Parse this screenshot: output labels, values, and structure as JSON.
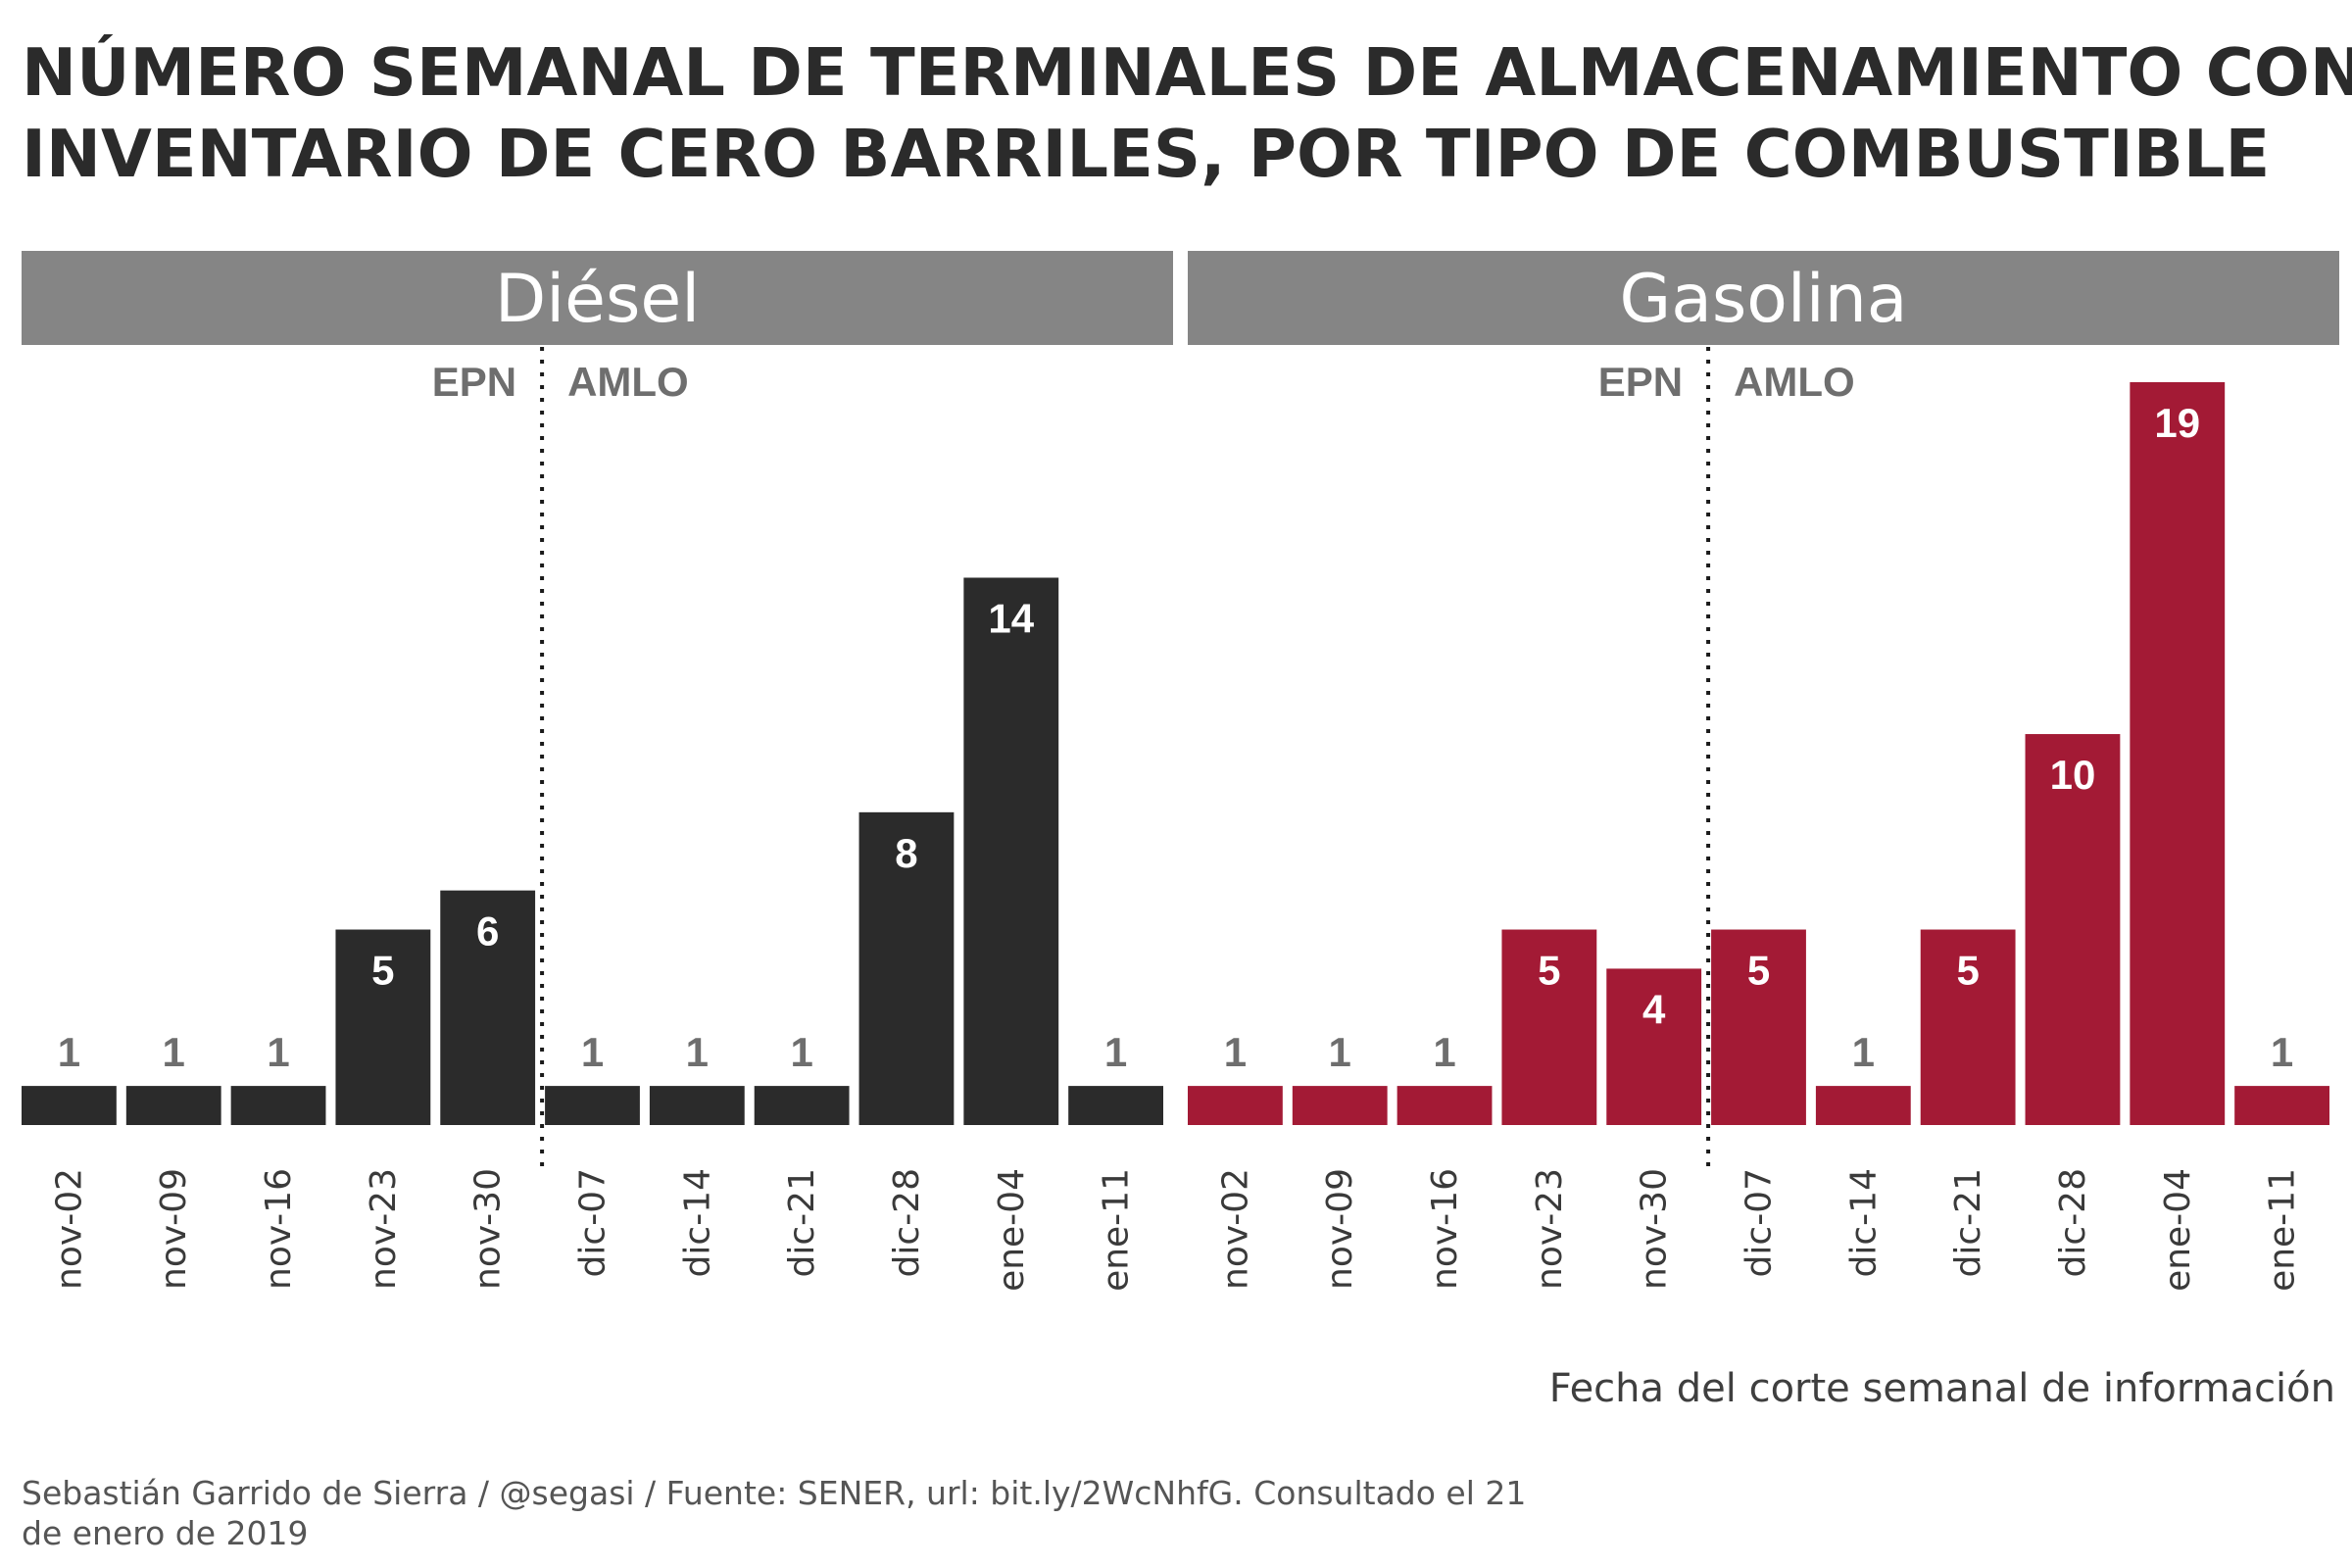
{
  "chart_data": {
    "type": "bar",
    "title_lines": [
      "NÚMERO SEMANAL DE TERMINALES DE ALMACENAMIENTO CON",
      "INVENTARIO DE CERO BARRILES, POR TIPO DE COMBUSTIBLE"
    ],
    "categories": [
      "nov-02",
      "nov-09",
      "nov-16",
      "nov-23",
      "nov-30",
      "dic-07",
      "dic-14",
      "dic-21",
      "dic-28",
      "ene-04",
      "ene-11"
    ],
    "panels": [
      {
        "name": "Diésel",
        "color": "#2b2b2b",
        "values": [
          1,
          1,
          1,
          5,
          6,
          1,
          1,
          1,
          8,
          14,
          1
        ]
      },
      {
        "name": "Gasolina",
        "color": "#a31a35",
        "values": [
          1,
          1,
          1,
          5,
          4,
          5,
          1,
          5,
          10,
          19,
          1
        ]
      }
    ],
    "eras": {
      "before": "EPN",
      "after": "AMLO",
      "divider_between": [
        "nov-30",
        "dic-07"
      ]
    },
    "xlabel": "Fecha del corte semanal de información",
    "ylabel": "",
    "ylim": [
      0,
      19
    ]
  },
  "caption_lines": [
    "Sebastián Garrido de Sierra / @segasi / Fuente: SENER, url: bit.ly/2WcNhfG. Consultado el 21",
    "de enero de 2019"
  ]
}
